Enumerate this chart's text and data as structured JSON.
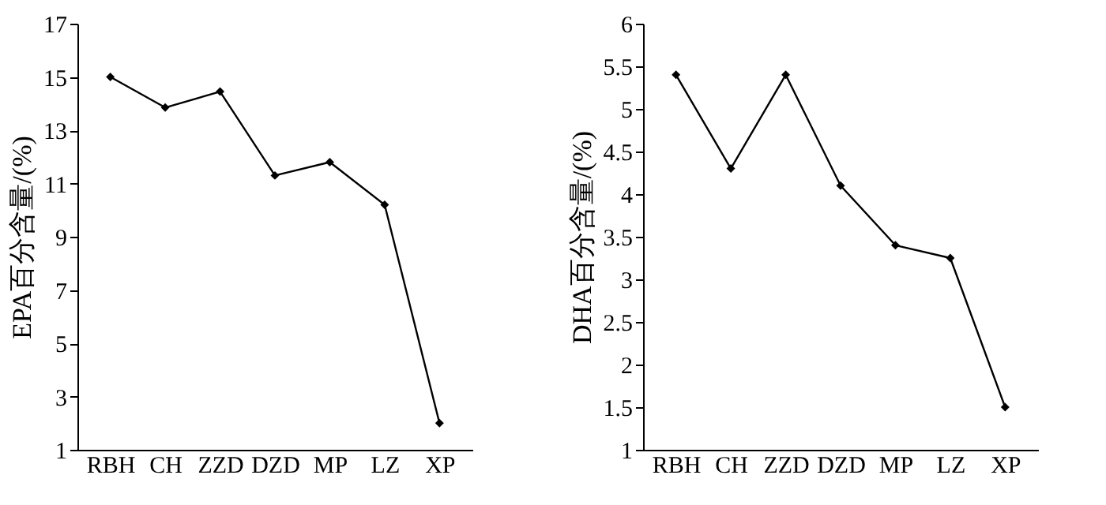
{
  "chart_data": [
    {
      "type": "line",
      "ylabel": "EPA百分含量/(%)",
      "categories": [
        "RBH",
        "CH",
        "ZZD",
        "DZD",
        "MP",
        "LZ",
        "XP"
      ],
      "series": [
        {
          "color": "#000000",
          "values": [
            15.0,
            13.85,
            14.45,
            11.3,
            11.8,
            10.2,
            2.0
          ]
        }
      ],
      "ylim": [
        1,
        17
      ],
      "yticks": [
        1,
        3,
        5,
        7,
        9,
        11,
        13,
        15,
        17
      ],
      "grid": false,
      "legend": false,
      "marker": "diamond",
      "line_style": "solid"
    },
    {
      "type": "line",
      "ylabel": "DHA百分含量/(%)",
      "categories": [
        "RBH",
        "CH",
        "ZZD",
        "DZD",
        "MP",
        "LZ",
        "XP"
      ],
      "series": [
        {
          "color": "#000000",
          "values": [
            5.4,
            4.3,
            5.4,
            4.1,
            3.4,
            3.25,
            1.5
          ]
        }
      ],
      "ylim": [
        1,
        6
      ],
      "yticks": [
        1,
        1.5,
        2,
        2.5,
        3,
        3.5,
        4,
        4.5,
        5,
        5.5,
        6
      ],
      "grid": false,
      "legend": false,
      "marker": "diamond",
      "line_style": "solid"
    }
  ]
}
